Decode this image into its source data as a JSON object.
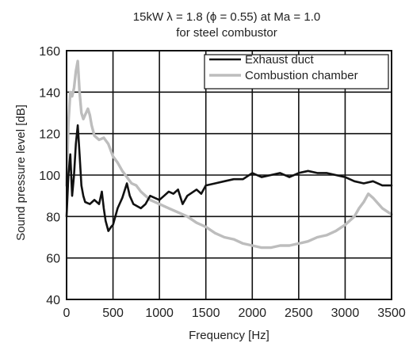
{
  "chart_data": {
    "type": "line",
    "title": "15kW λ = 1.8 (ϕ = 0.55) at Ma = 1.0",
    "subtitle": "for steel combustor",
    "xlabel": "Frequency [Hz]",
    "ylabel": "Sound pressure level [dB]",
    "xlim": [
      0,
      3500
    ],
    "ylim": [
      40,
      160
    ],
    "xticks": [
      0,
      500,
      1000,
      1500,
      2000,
      2500,
      3000,
      3500
    ],
    "yticks": [
      40,
      60,
      80,
      100,
      120,
      140,
      160
    ],
    "grid": true,
    "legend_position": "top-right",
    "series": [
      {
        "name": "Exhaust duct",
        "color": "#111111",
        "x": [
          0,
          20,
          40,
          60,
          80,
          100,
          120,
          140,
          160,
          180,
          200,
          250,
          300,
          350,
          380,
          400,
          420,
          450,
          480,
          500,
          550,
          600,
          650,
          680,
          720,
          800,
          850,
          900,
          1000,
          1050,
          1100,
          1150,
          1200,
          1250,
          1300,
          1400,
          1450,
          1500,
          1600,
          1700,
          1800,
          1900,
          2000,
          2050,
          2100,
          2200,
          2300,
          2400,
          2500,
          2600,
          2700,
          2800,
          2900,
          3000,
          3100,
          3200,
          3300,
          3400,
          3500
        ],
        "y": [
          80,
          100,
          110,
          90,
          100,
          115,
          124,
          110,
          95,
          90,
          87,
          86,
          88,
          86,
          92,
          84,
          78,
          73,
          75,
          76,
          84,
          89,
          96,
          90,
          86,
          84,
          86,
          90,
          88,
          90,
          92,
          91,
          93,
          86,
          90,
          93,
          91,
          95,
          96,
          97,
          98,
          98,
          101,
          100,
          99,
          100,
          101,
          99,
          101,
          102,
          101,
          101,
          100,
          99,
          97,
          96,
          97,
          95,
          95
        ]
      },
      {
        "name": "Combustion chamber",
        "color": "#bdbdbd",
        "x": [
          0,
          20,
          40,
          60,
          80,
          100,
          120,
          140,
          160,
          180,
          200,
          230,
          250,
          270,
          300,
          350,
          400,
          450,
          500,
          550,
          600,
          650,
          700,
          750,
          800,
          850,
          900,
          950,
          1000,
          1100,
          1200,
          1300,
          1400,
          1500,
          1600,
          1700,
          1800,
          1900,
          2000,
          2100,
          2200,
          2300,
          2400,
          2500,
          2600,
          2700,
          2800,
          2900,
          3000,
          3100,
          3150,
          3200,
          3250,
          3300,
          3400,
          3500
        ],
        "y": [
          95,
          125,
          140,
          138,
          142,
          150,
          155,
          140,
          130,
          127,
          129,
          132,
          129,
          124,
          119,
          117,
          118,
          115,
          109,
          106,
          102,
          99,
          96,
          95,
          92,
          90,
          88,
          87,
          86,
          84,
          82,
          80,
          77,
          75,
          72,
          70,
          69,
          67,
          66,
          65,
          65,
          66,
          66,
          67,
          68,
          70,
          71,
          73,
          76,
          80,
          84,
          87,
          91,
          89,
          84,
          81
        ]
      }
    ]
  }
}
